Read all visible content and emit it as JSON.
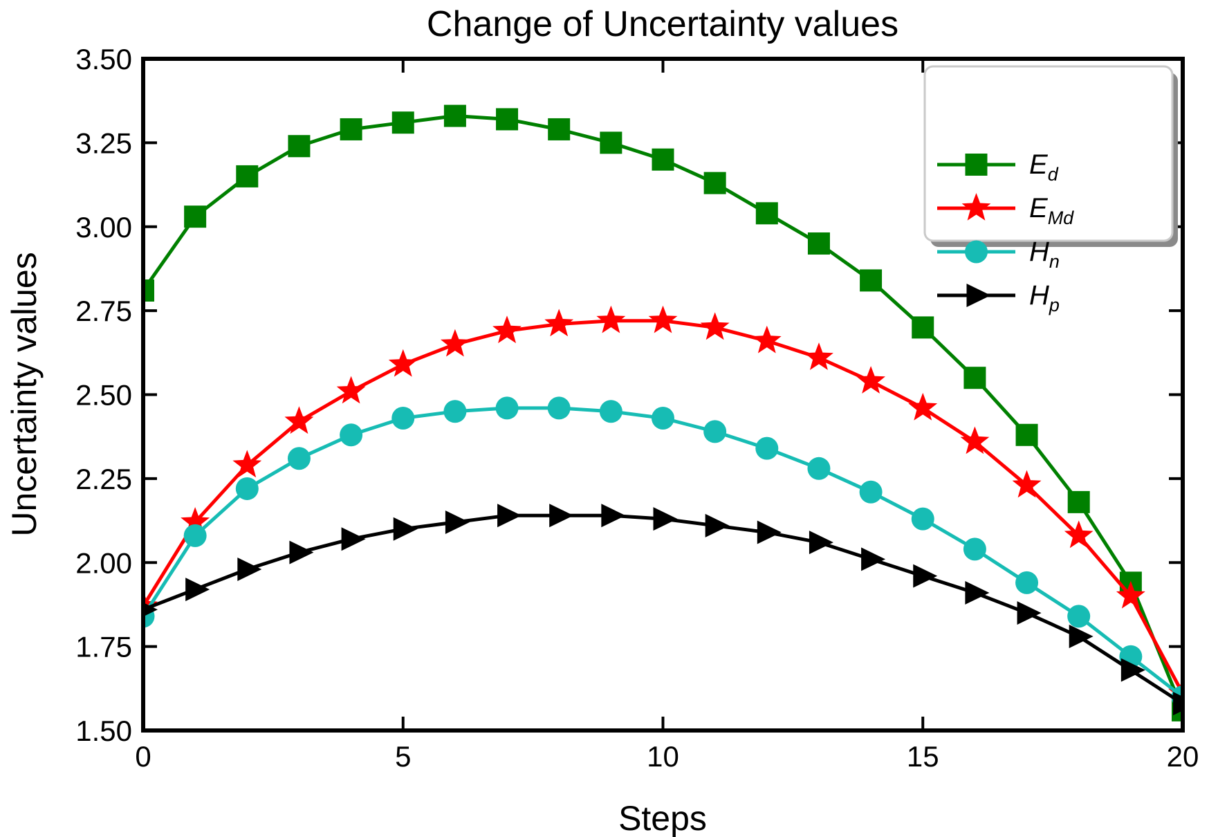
{
  "chart_data": {
    "type": "line",
    "title": "Change of Uncertainty values",
    "xlabel": "Steps",
    "ylabel": "Uncertainty values",
    "xlim": [
      0,
      20
    ],
    "ylim": [
      1.5,
      3.5
    ],
    "xticks": [
      0,
      5,
      10,
      15,
      20
    ],
    "xtick_labels": [
      "0",
      "5",
      "10",
      "15",
      "20"
    ],
    "ytick_values": [
      1.5,
      1.75,
      2.0,
      2.25,
      2.5,
      2.75,
      3.0,
      3.25,
      3.5
    ],
    "ytick_labels": [
      "1.50",
      "1.75",
      "2.00",
      "2.25",
      "2.50",
      "2.75",
      "3.00",
      "3.25",
      "3.50"
    ],
    "grid": false,
    "legend_position": "top-right",
    "x": [
      0,
      1,
      2,
      3,
      4,
      5,
      6,
      7,
      8,
      9,
      10,
      11,
      12,
      13,
      14,
      15,
      16,
      17,
      18,
      19,
      20
    ],
    "series": [
      {
        "name": "E_d",
        "label_main": "E",
        "label_sub": "d",
        "marker": "square",
        "color": "#008000",
        "values": [
          2.81,
          3.03,
          3.15,
          3.24,
          3.29,
          3.31,
          3.33,
          3.32,
          3.29,
          3.25,
          3.2,
          3.13,
          3.04,
          2.95,
          2.84,
          2.7,
          2.55,
          2.38,
          2.18,
          1.94,
          1.56
        ]
      },
      {
        "name": "E_Md",
        "label_main": "E",
        "label_sub": "Md",
        "marker": "star",
        "color": "#ff0000",
        "values": [
          1.87,
          2.12,
          2.29,
          2.42,
          2.51,
          2.59,
          2.65,
          2.69,
          2.71,
          2.72,
          2.72,
          2.7,
          2.66,
          2.61,
          2.54,
          2.46,
          2.36,
          2.23,
          2.08,
          1.9,
          1.61
        ]
      },
      {
        "name": "H_n",
        "label_main": "H",
        "label_sub": "n",
        "marker": "circle",
        "color": "#17bcb4",
        "values": [
          1.84,
          2.08,
          2.22,
          2.31,
          2.38,
          2.43,
          2.45,
          2.46,
          2.46,
          2.45,
          2.43,
          2.39,
          2.34,
          2.28,
          2.21,
          2.13,
          2.04,
          1.94,
          1.84,
          1.72,
          1.6
        ]
      },
      {
        "name": "H_p",
        "label_main": "H",
        "label_sub": "p",
        "marker": "triangle-right",
        "color": "#000000",
        "values": [
          1.86,
          1.92,
          1.98,
          2.03,
          2.07,
          2.1,
          2.12,
          2.14,
          2.14,
          2.14,
          2.13,
          2.11,
          2.09,
          2.06,
          2.01,
          1.96,
          1.91,
          1.85,
          1.78,
          1.68,
          1.58
        ]
      }
    ],
    "colors": {
      "axis": "#000000",
      "background": "#ffffff",
      "legend_border": "#c9c9c9",
      "legend_shadow": "#8a8a8a",
      "legend_background": "#ffffff"
    }
  }
}
